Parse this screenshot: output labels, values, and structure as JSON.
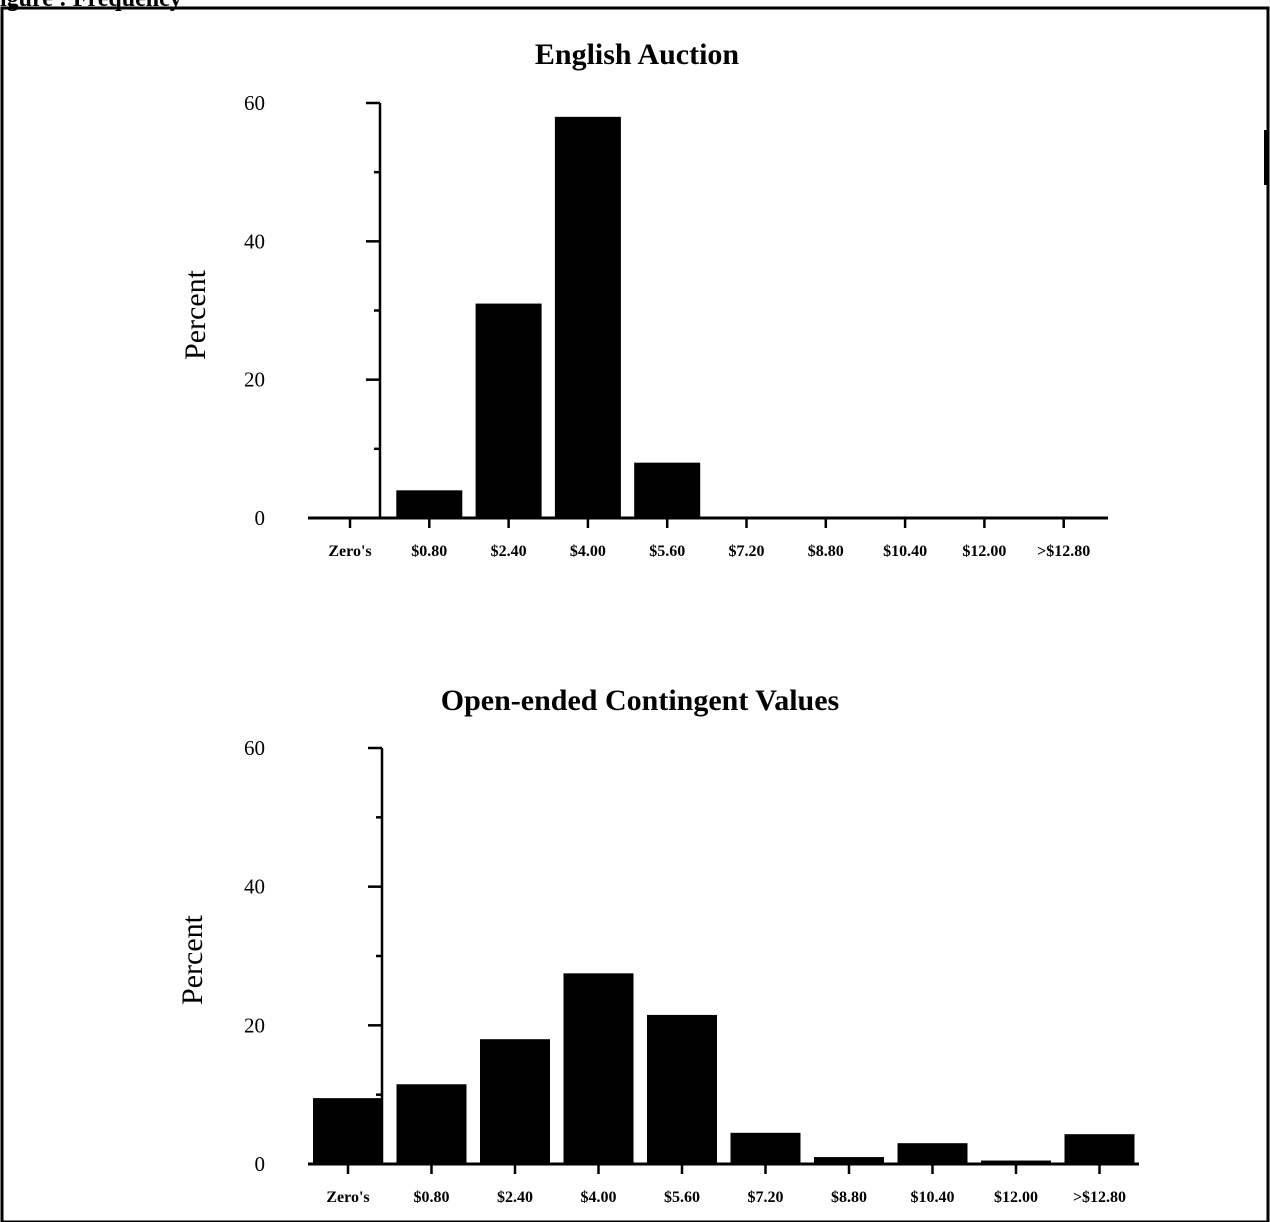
{
  "header_fragment": "igure : Frequency",
  "chart_data": [
    {
      "type": "bar",
      "title": "English Auction",
      "xlabel": "",
      "ylabel": "Percent",
      "ylim": [
        0,
        60
      ],
      "yticks": [
        0,
        20,
        40,
        60
      ],
      "categories": [
        "Zero's",
        "$0.80",
        "$2.40",
        "$4.00",
        "$5.60",
        "$7.20",
        "$8.80",
        "$10.40",
        "$12.00",
        ">$12.80"
      ],
      "values": [
        0,
        4,
        31,
        58,
        8,
        0,
        0,
        0,
        0,
        0
      ],
      "grid": false,
      "legend": "none"
    },
    {
      "type": "bar",
      "title": "Open-ended Contingent Values",
      "xlabel": "",
      "ylabel": "Percent",
      "ylim": [
        0,
        60
      ],
      "yticks": [
        0,
        20,
        40,
        60
      ],
      "categories": [
        "Zero's",
        "$0.80",
        "$2.40",
        "$4.00",
        "$5.60",
        "$7.20",
        "$8.80",
        "$10.40",
        "$12.00",
        ">$12.80"
      ],
      "values": [
        9.5,
        11.5,
        18,
        27.5,
        21.5,
        4.5,
        1,
        3,
        0.5,
        4.3
      ],
      "grid": false,
      "legend": "none"
    }
  ],
  "colors": {
    "bar": "#000000",
    "axis": "#000000",
    "background": "#ffffff"
  }
}
